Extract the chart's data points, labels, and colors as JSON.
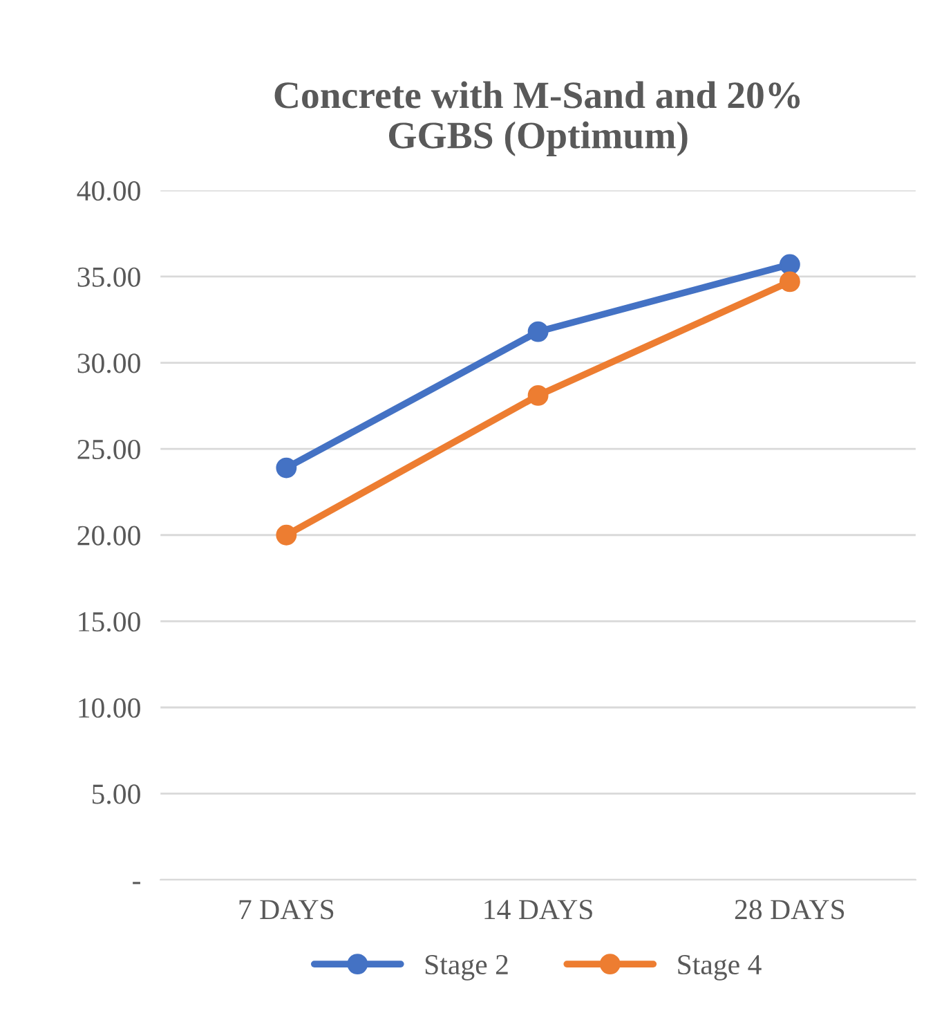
{
  "chart_data": {
    "type": "line",
    "title": "Concrete with M-Sand and 20%\nGGBS (Optimum)",
    "categories": [
      "7 DAYS",
      "14 DAYS",
      "28 DAYS"
    ],
    "series": [
      {
        "name": "Stage 2",
        "color": "#4472c4",
        "values": [
          23.9,
          31.8,
          35.7
        ]
      },
      {
        "name": "Stage 4",
        "color": "#ed7d31",
        "values": [
          20.0,
          28.1,
          34.7
        ]
      }
    ],
    "ylim": [
      0,
      40
    ],
    "yticks": [
      {
        "value": 0,
        "label": "-"
      },
      {
        "value": 5,
        "label": "5.00"
      },
      {
        "value": 10,
        "label": "10.00"
      },
      {
        "value": 15,
        "label": "15.00"
      },
      {
        "value": 20,
        "label": "20.00"
      },
      {
        "value": 25,
        "label": "25.00"
      },
      {
        "value": 30,
        "label": "30.00"
      },
      {
        "value": 35,
        "label": "35.00"
      },
      {
        "value": 40,
        "label": "40.00"
      }
    ],
    "grid": "y",
    "legend": "bottom",
    "marker": "circle",
    "line_style": "solid"
  }
}
